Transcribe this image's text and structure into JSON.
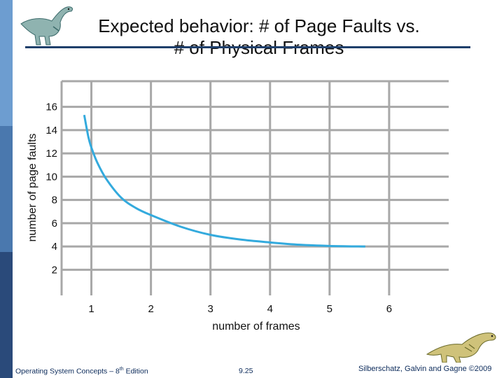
{
  "slide": {
    "title_line1": "Expected behavior:  # of Page Faults vs.",
    "title_line2": "# of Physical Frames",
    "colors": {
      "accent_bar": "#2a4a7a",
      "bar_top": "#6d9dd0",
      "title_rule": "#1f3f6b",
      "grid": "#a8a8a8",
      "curve": "#33aadd"
    }
  },
  "footer": {
    "left_prefix": "Operating System Concepts – 8",
    "left_sup": "th",
    "left_suffix": " Edition",
    "center": "9.25",
    "right": "Silberschatz, Galvin and Gagne ©2009"
  },
  "chart_data": {
    "type": "line",
    "xlabel": "number of frames",
    "ylabel": "number of page faults",
    "xlim": [
      0.5,
      7.0
    ],
    "ylim": [
      -0.2,
      18.2
    ],
    "x_ticks": [
      1,
      2,
      3,
      4,
      5,
      6
    ],
    "y_ticks": [
      2,
      4,
      6,
      8,
      10,
      12,
      14,
      16
    ],
    "grid": true,
    "series": [
      {
        "points": [
          [
            0.88,
            15.3
          ],
          [
            0.95,
            13.4
          ],
          [
            1.0,
            12.5
          ],
          [
            1.1,
            11.2
          ],
          [
            1.25,
            9.8
          ],
          [
            1.5,
            8.2
          ],
          [
            1.75,
            7.3
          ],
          [
            2.0,
            6.7
          ],
          [
            2.5,
            5.7
          ],
          [
            3.0,
            5.0
          ],
          [
            3.5,
            4.6
          ],
          [
            4.0,
            4.35
          ],
          [
            4.5,
            4.15
          ],
          [
            5.0,
            4.05
          ],
          [
            5.6,
            4.0
          ]
        ]
      }
    ]
  }
}
